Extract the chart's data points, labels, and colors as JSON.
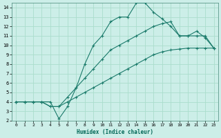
{
  "xlabel": "Humidex (Indice chaleur)",
  "bg_color": "#cceee8",
  "grid_color": "#aaddcc",
  "line_color": "#1a7a6a",
  "xlim": [
    -0.5,
    23.5
  ],
  "ylim": [
    2,
    14.5
  ],
  "xticks": [
    0,
    1,
    2,
    3,
    4,
    5,
    6,
    7,
    8,
    9,
    10,
    11,
    12,
    13,
    14,
    15,
    16,
    17,
    18,
    19,
    20,
    21,
    22,
    23
  ],
  "yticks": [
    2,
    3,
    4,
    5,
    6,
    7,
    8,
    9,
    10,
    11,
    12,
    13,
    14
  ],
  "line1_x": [
    0,
    1,
    2,
    3,
    4,
    5,
    6,
    7,
    8,
    9,
    10,
    11,
    12,
    13,
    14,
    15,
    16,
    17,
    18,
    19,
    20,
    21,
    22,
    23
  ],
  "line1_y": [
    4,
    4,
    4,
    4,
    3.5,
    3.5,
    4.0,
    4.5,
    5.0,
    5.5,
    6.0,
    6.5,
    7.0,
    7.5,
    8.0,
    8.5,
    9.0,
    9.3,
    9.5,
    9.6,
    9.7,
    9.7,
    9.7,
    9.7
  ],
  "line2_x": [
    0,
    1,
    2,
    3,
    4,
    5,
    6,
    7,
    8,
    9,
    10,
    11,
    12,
    13,
    14,
    15,
    16,
    17,
    18,
    19,
    20,
    21,
    22,
    23
  ],
  "line2_y": [
    4,
    4,
    4,
    4,
    3.5,
    3.5,
    4.5,
    5.5,
    6.5,
    7.5,
    8.5,
    9.5,
    10.0,
    10.5,
    11.0,
    11.5,
    12.0,
    12.3,
    12.5,
    11.0,
    11.0,
    11.5,
    10.8,
    9.7
  ],
  "line3_x": [
    0,
    1,
    2,
    3,
    4,
    5,
    6,
    7,
    8,
    9,
    10,
    11,
    12,
    13,
    14,
    15,
    16,
    17,
    18,
    19,
    20,
    21,
    22,
    23
  ],
  "line3_y": [
    4,
    4,
    4,
    4,
    4,
    2.2,
    3.5,
    5.5,
    8.0,
    10.0,
    11.0,
    12.5,
    13.0,
    13.0,
    14.5,
    14.5,
    13.5,
    12.8,
    12.0,
    11.0,
    11.0,
    11.0,
    11.0,
    9.7
  ]
}
